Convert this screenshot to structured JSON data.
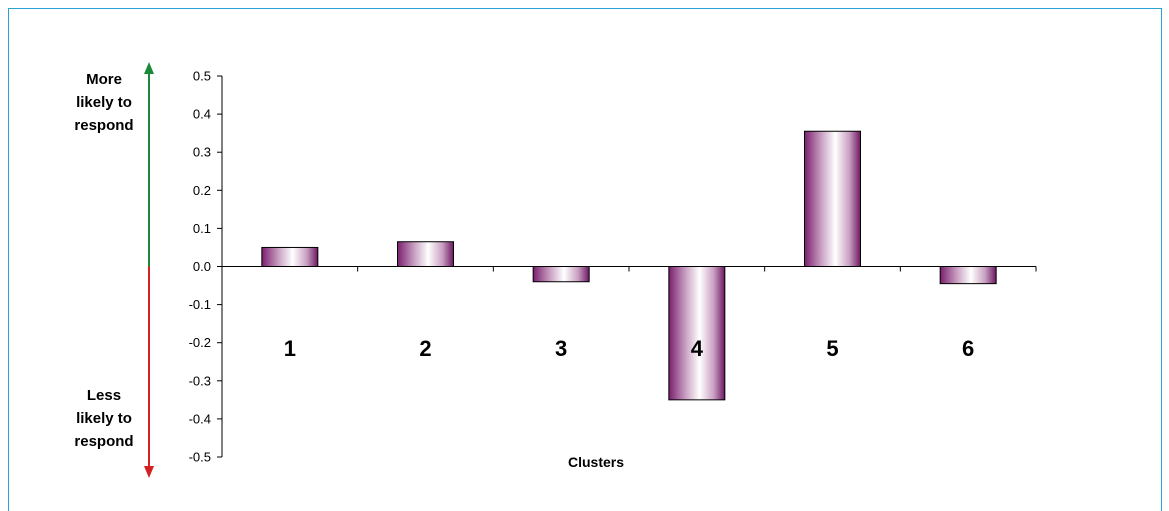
{
  "chart_data": {
    "type": "bar",
    "title": "",
    "xlabel": "Clusters",
    "ylabel": "",
    "ylim": [
      -0.5,
      0.5
    ],
    "yticks": [
      "0.5",
      "0.4",
      "0.3",
      "0.2",
      "0.1",
      "0.0",
      "-0.1",
      "-0.2",
      "-0.3",
      "-0.4",
      "-0.5"
    ],
    "categories": [
      "1",
      "2",
      "3",
      "4",
      "5",
      "6"
    ],
    "values": [
      0.05,
      0.065,
      -0.04,
      -0.35,
      0.355,
      -0.045
    ],
    "grid": false,
    "bar_color": "#7a1f6e",
    "arrow_up_color": "#1a8a3a",
    "arrow_down_color": "#d42020",
    "side_labels": {
      "top": [
        "More",
        "likely to",
        "respond"
      ],
      "bottom": [
        "Less",
        "likely to",
        "respond"
      ]
    }
  }
}
